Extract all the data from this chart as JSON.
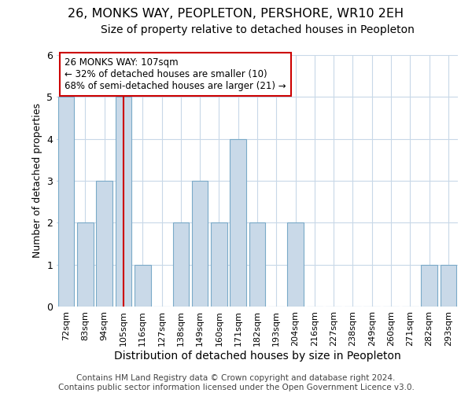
{
  "title": "26, MONKS WAY, PEOPLETON, PERSHORE, WR10 2EH",
  "subtitle": "Size of property relative to detached houses in Peopleton",
  "xlabel": "Distribution of detached houses by size in Peopleton",
  "ylabel": "Number of detached properties",
  "bar_labels": [
    "72sqm",
    "83sqm",
    "94sqm",
    "105sqm",
    "116sqm",
    "127sqm",
    "138sqm",
    "149sqm",
    "160sqm",
    "171sqm",
    "182sqm",
    "193sqm",
    "204sqm",
    "216sqm",
    "227sqm",
    "238sqm",
    "249sqm",
    "260sqm",
    "271sqm",
    "282sqm",
    "293sqm"
  ],
  "bar_values": [
    5,
    2,
    3,
    5,
    1,
    0,
    2,
    3,
    2,
    4,
    2,
    0,
    2,
    0,
    0,
    0,
    0,
    0,
    0,
    1,
    1
  ],
  "bar_color": "#c9d9e8",
  "bar_edge_color": "#7aaac8",
  "vline_x_index": 3,
  "vline_color": "#cc0000",
  "ylim": [
    0,
    6
  ],
  "yticks": [
    0,
    1,
    2,
    3,
    4,
    5,
    6
  ],
  "annotation_title": "26 MONKS WAY: 107sqm",
  "annotation_line1": "← 32% of detached houses are smaller (10)",
  "annotation_line2": "68% of semi-detached houses are larger (21) →",
  "annotation_box_color": "#ffffff",
  "annotation_box_edge": "#cc0000",
  "footer_line1": "Contains HM Land Registry data © Crown copyright and database right 2024.",
  "footer_line2": "Contains public sector information licensed under the Open Government Licence v3.0.",
  "background_color": "#ffffff",
  "plot_bg_color": "#ffffff",
  "grid_color": "#c8d8e8",
  "title_fontsize": 11.5,
  "subtitle_fontsize": 10,
  "xlabel_fontsize": 10,
  "ylabel_fontsize": 9,
  "footer_fontsize": 7.5,
  "bar_width": 0.85
}
